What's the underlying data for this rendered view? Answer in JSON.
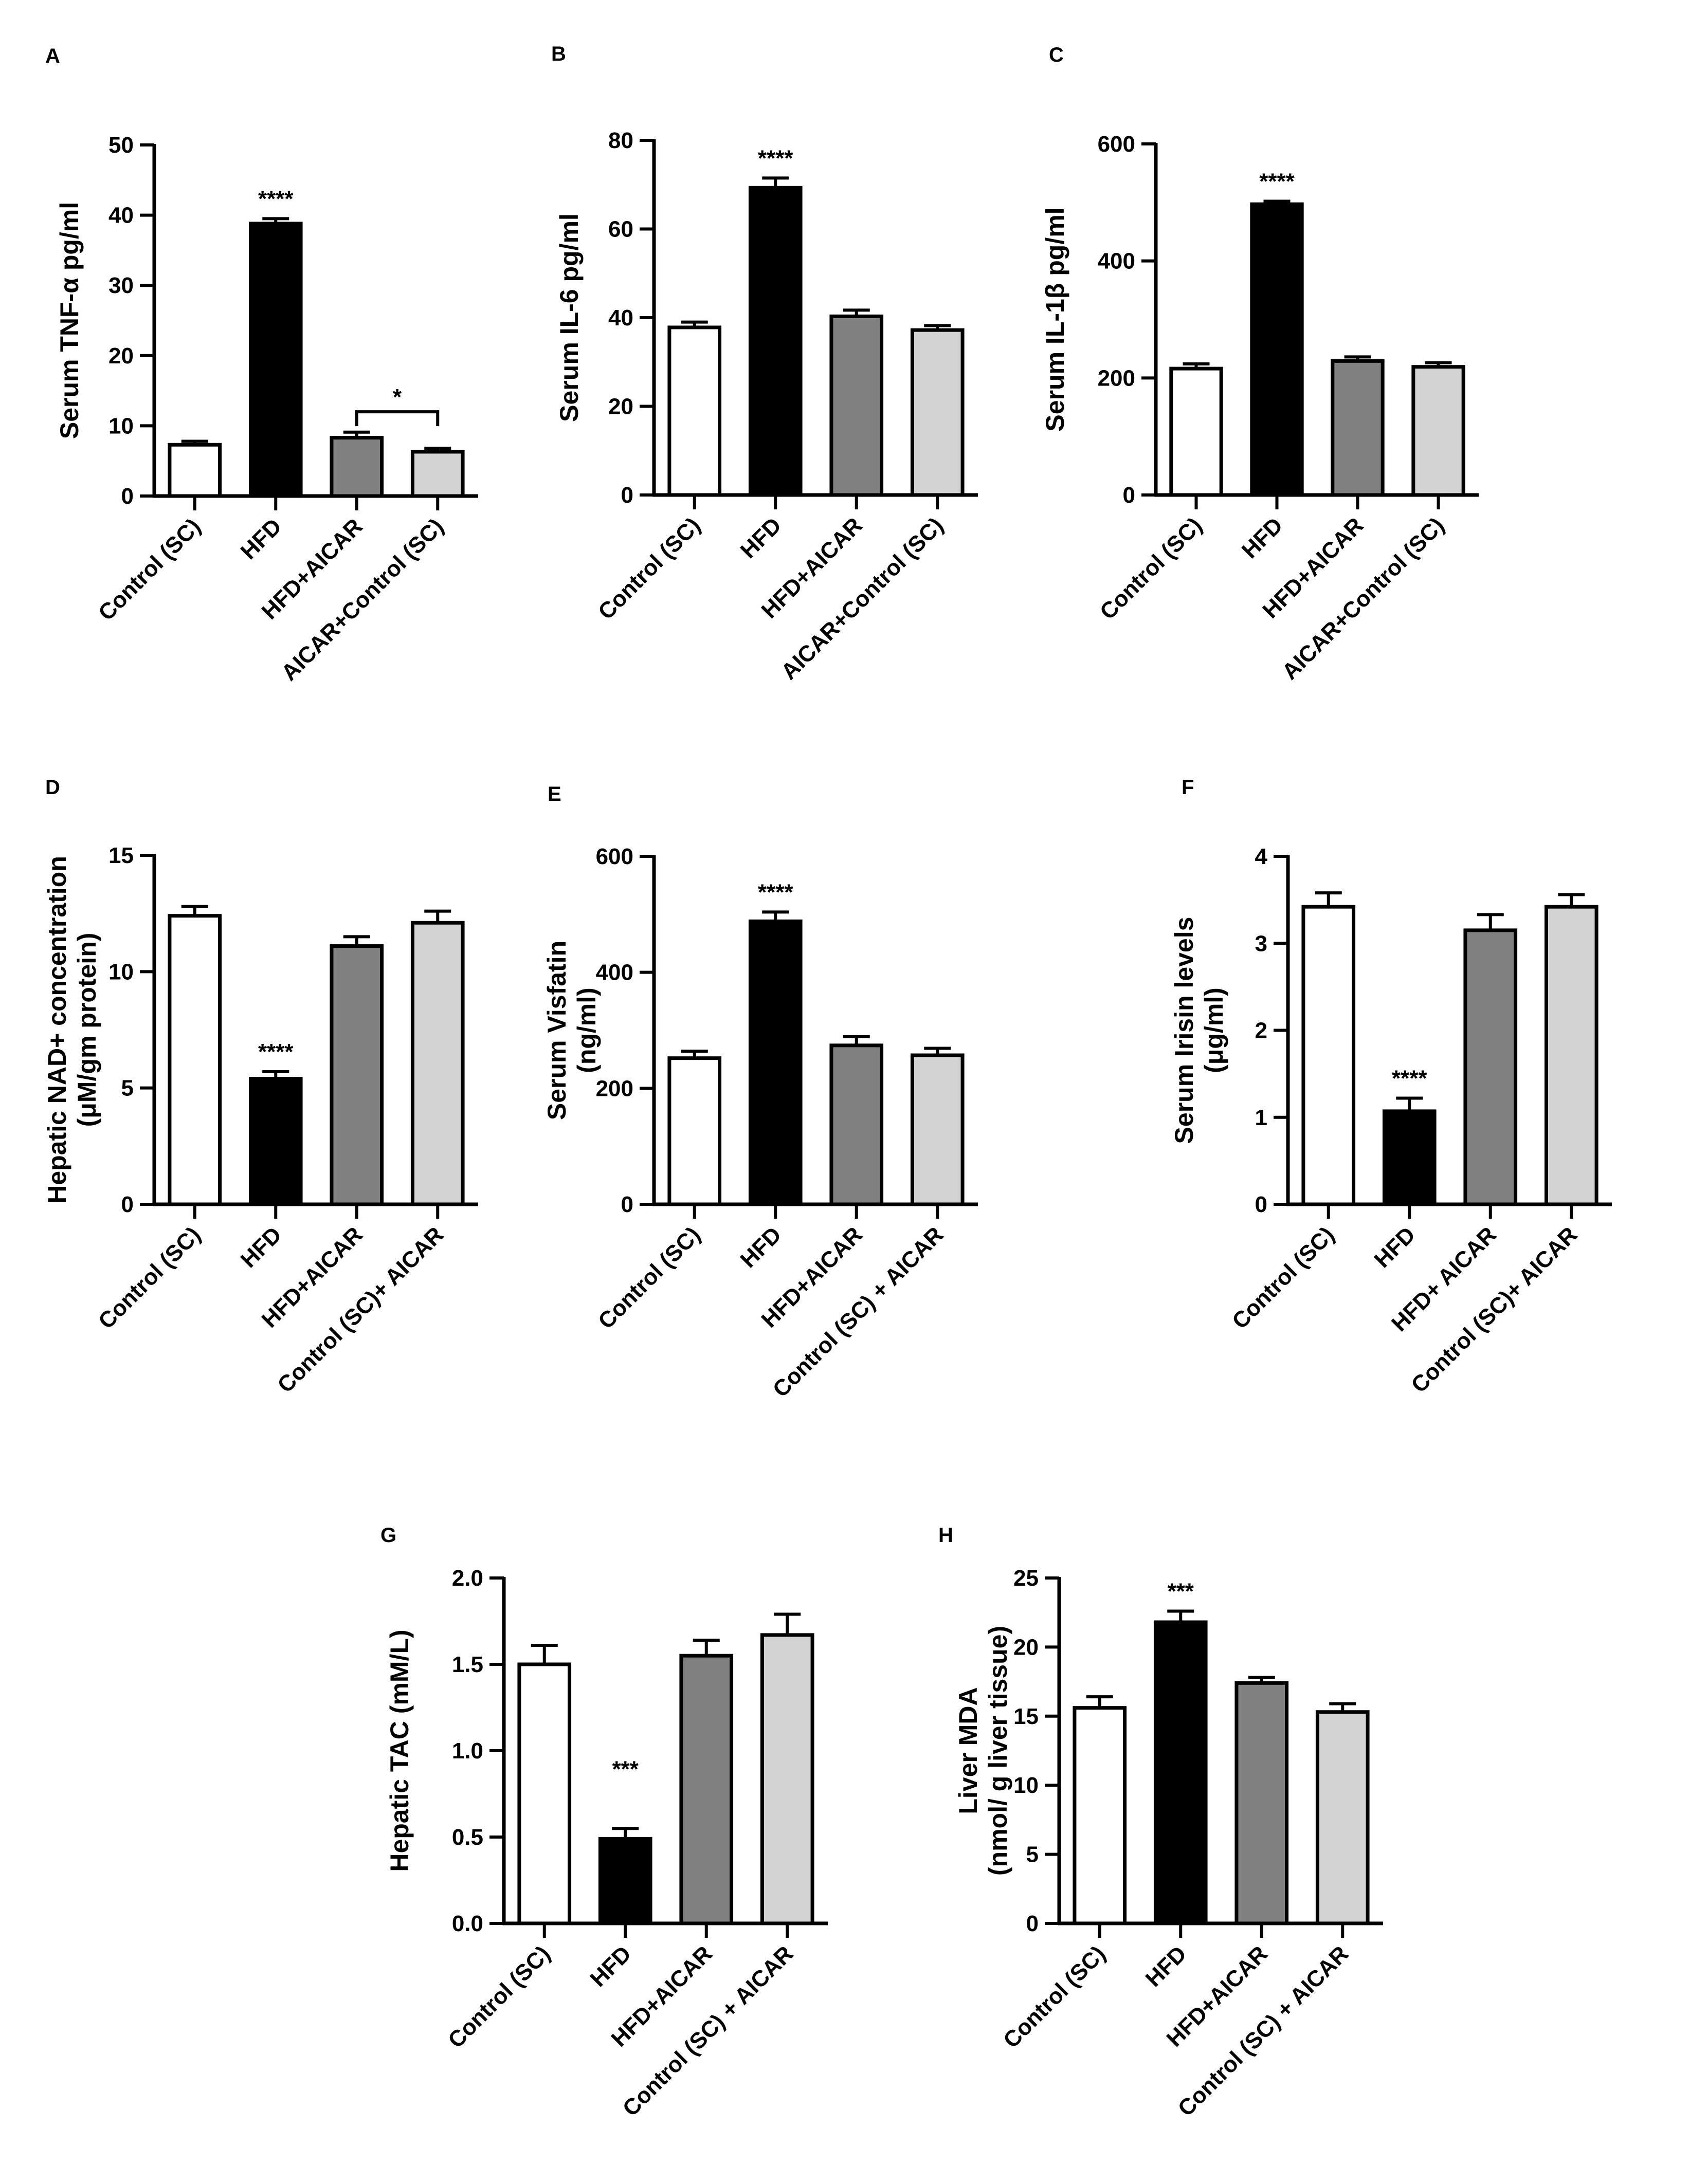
{
  "colors": {
    "control": "#ffffff",
    "hfd": "#000000",
    "hfd_aicar": "#808080",
    "aicar_control": "#d3d3d3",
    "axis": "#000000"
  },
  "chart_data": [
    {
      "id": "A",
      "type": "bar",
      "panel_label": "A",
      "ylabel": [
        "Serum TNF-α pg/ml"
      ],
      "categories": [
        "Control (SC)",
        "HFD",
        "HFD+AICAR",
        "AICAR+Control (SC)"
      ],
      "values": [
        7.3,
        38.8,
        8.3,
        6.3
      ],
      "errors": [
        0.5,
        0.7,
        0.8,
        0.5
      ],
      "ylim": [
        0,
        50
      ],
      "yticks": [
        0,
        10,
        20,
        30,
        40,
        50
      ],
      "tick_labels": [
        "0",
        "10",
        "20",
        "30",
        "40",
        "50"
      ],
      "annotations": [
        {
          "bar": 1,
          "text": "****"
        }
      ],
      "brackets": [
        {
          "from": 2,
          "to": 3,
          "y": 12,
          "text": "*"
        }
      ]
    },
    {
      "id": "B",
      "type": "bar",
      "panel_label": "B",
      "ylabel": [
        "Serum IL-6 pg/ml"
      ],
      "categories": [
        "Control (SC)",
        "HFD",
        "HFD+AICAR",
        "AICAR+Control (SC)"
      ],
      "values": [
        37.8,
        69.3,
        40.3,
        37.2
      ],
      "errors": [
        1.2,
        2.2,
        1.4,
        1.0
      ],
      "ylim": [
        0,
        80
      ],
      "yticks": [
        0,
        20,
        40,
        60,
        80
      ],
      "tick_labels": [
        "0",
        "20",
        "40",
        "60",
        "80"
      ],
      "annotations": [
        {
          "bar": 1,
          "text": "****"
        }
      ],
      "brackets": []
    },
    {
      "id": "C",
      "type": "bar",
      "panel_label": "C",
      "ylabel": [
        "Serum IL-1β pg/ml"
      ],
      "categories": [
        "Control (SC)",
        "HFD",
        "HFD+AICAR",
        "AICAR+Control (SC)"
      ],
      "values": [
        216,
        497,
        229,
        219
      ],
      "errors": [
        8,
        5,
        7,
        7
      ],
      "ylim": [
        0,
        600
      ],
      "yticks": [
        0,
        200,
        400,
        600
      ],
      "tick_labels": [
        "0",
        "200",
        "400",
        "600"
      ],
      "annotations": [
        {
          "bar": 1,
          "text": "****"
        }
      ],
      "brackets": []
    },
    {
      "id": "D",
      "type": "bar",
      "panel_label": "D",
      "ylabel": [
        "Hepatic NAD+ concentration",
        "(μM/gm protein)"
      ],
      "categories": [
        "Control (SC)",
        "HFD",
        "HFD+AICAR",
        "Control (SC)+ AICAR"
      ],
      "values": [
        12.4,
        5.4,
        11.1,
        12.1
      ],
      "errors": [
        0.4,
        0.3,
        0.4,
        0.5
      ],
      "ylim": [
        0,
        15
      ],
      "yticks": [
        0,
        5,
        10,
        15
      ],
      "tick_labels": [
        "0",
        "5",
        "10",
        "15"
      ],
      "annotations": [
        {
          "bar": 1,
          "text": "****"
        }
      ],
      "brackets": []
    },
    {
      "id": "E",
      "type": "bar",
      "panel_label": "E",
      "ylabel": [
        "Serum Visfatin",
        "(ng/ml)"
      ],
      "categories": [
        "Control (SC)",
        "HFD",
        "HFD+AICAR",
        "Control (SC) + AICAR"
      ],
      "values": [
        252,
        488,
        274,
        257
      ],
      "errors": [
        12,
        16,
        15,
        12
      ],
      "ylim": [
        0,
        600
      ],
      "yticks": [
        0,
        200,
        400,
        600
      ],
      "tick_labels": [
        "0",
        "200",
        "400",
        "600"
      ],
      "annotations": [
        {
          "bar": 1,
          "text": "****"
        }
      ],
      "brackets": []
    },
    {
      "id": "F",
      "type": "bar",
      "panel_label": "F",
      "ylabel": [
        "Serum Irisin levels",
        "(μg/ml)"
      ],
      "categories": [
        "Control (SC)",
        "HFD",
        "HFD+ AICAR",
        "Control (SC)+ AICAR"
      ],
      "values": [
        3.42,
        1.07,
        3.15,
        3.42
      ],
      "errors": [
        0.16,
        0.15,
        0.18,
        0.14
      ],
      "ylim": [
        0,
        4
      ],
      "yticks": [
        0,
        1,
        2,
        3,
        4
      ],
      "tick_labels": [
        "0",
        "1",
        "2",
        "3",
        "4"
      ],
      "annotations": [
        {
          "bar": 1,
          "text": "****"
        }
      ],
      "brackets": []
    },
    {
      "id": "G",
      "type": "bar",
      "panel_label": "G",
      "ylabel": [
        "Hepatic TAC (mM/L)"
      ],
      "categories": [
        "Control (SC)",
        "HFD",
        "HFD+AICAR",
        "Control (SC) + AICAR"
      ],
      "values": [
        1.5,
        0.49,
        1.55,
        1.67
      ],
      "errors": [
        0.11,
        0.06,
        0.09,
        0.12
      ],
      "ylim": [
        0,
        2.0
      ],
      "yticks": [
        0,
        0.5,
        1.0,
        1.5,
        2.0
      ],
      "tick_labels": [
        "0.0",
        "0.5",
        "1.0",
        "1.5",
        "2.0"
      ],
      "annotations": [
        {
          "bar": 1,
          "text": "***",
          "y": 0.85
        }
      ],
      "brackets": []
    },
    {
      "id": "H",
      "type": "bar",
      "panel_label": "H",
      "ylabel": [
        "Liver MDA",
        "(nmol/ g liver tissue)"
      ],
      "categories": [
        "Control (SC)",
        "HFD",
        "HFD+AICAR",
        "Control (SC) + AICAR"
      ],
      "values": [
        15.6,
        21.8,
        17.4,
        15.3
      ],
      "errors": [
        0.8,
        0.8,
        0.4,
        0.6
      ],
      "ylim": [
        0,
        25
      ],
      "yticks": [
        0,
        5,
        10,
        15,
        20,
        25
      ],
      "tick_labels": [
        "0",
        "5",
        "10",
        "15",
        "20",
        "25"
      ],
      "annotations": [
        {
          "bar": 1,
          "text": "***"
        }
      ],
      "brackets": []
    }
  ]
}
